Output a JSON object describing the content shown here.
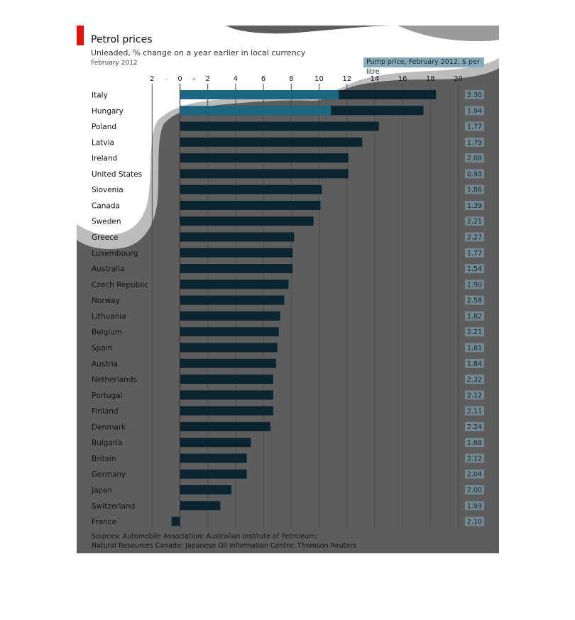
{
  "header": {
    "title": "Petrol prices",
    "subtitle": "Unleaded, % change on a year earlier in local currency",
    "date": "February 2012",
    "pump_label": "Pump price, February 2012, $ per litre"
  },
  "footer": {
    "source_line1": "Sources: Automobile Association; Australian Institute of Petroleum;",
    "source_line2": "Natural Resources Canada; Japanese Oil Information Centre; Thomson Reuters"
  },
  "colors": {
    "card": "#5d5d5d",
    "bar": "#0b2530",
    "bar_highlight": "#1f6e8c",
    "accent": "#e3120b",
    "pump_box": "#86aab8",
    "splash_white": "#ffffff",
    "splash_grey": "#bcbcbc"
  },
  "chart_data": {
    "type": "bar",
    "orientation": "horizontal",
    "title": "Petrol prices",
    "xlabel": "Unleaded, % change on a year earlier in local currency",
    "xlim": [
      -4,
      20
    ],
    "xticks": [
      "2",
      "–",
      "0",
      "+",
      "2",
      "4",
      "6",
      "8",
      "10",
      "12",
      "14",
      "16",
      "18",
      "20"
    ],
    "categories": [
      "Italy",
      "Hungary",
      "Poland",
      "Latvia",
      "Ireland",
      "United States",
      "Slovenia",
      "Canada",
      "Sweden",
      "Greece",
      "Luxembourg",
      "Australia",
      "Czech Republic",
      "Norway",
      "Lithuania",
      "Belgium",
      "Spain",
      "Austria",
      "Netherlands",
      "Portugal",
      "Finland",
      "Denmark",
      "Bulgaria",
      "Britain",
      "Germany",
      "Japan",
      "Switzerland",
      "France"
    ],
    "series": [
      {
        "name": "% change",
        "values": [
          18.4,
          17.5,
          14.3,
          13.1,
          12.1,
          12.1,
          10.2,
          10.1,
          9.6,
          8.2,
          8.1,
          8.1,
          7.8,
          7.5,
          7.2,
          7.1,
          7.0,
          6.9,
          6.7,
          6.7,
          6.7,
          6.5,
          5.1,
          4.8,
          4.8,
          3.7,
          2.9,
          -0.6
        ]
      },
      {
        "name": "Pump price, February 2012, $ per litre",
        "values": [
          "2.30",
          "1.94",
          "1.77",
          "1.79",
          "2.08",
          "0.93",
          "1.86",
          "1.39",
          "2.21",
          "2.27",
          "1.77",
          "1.54",
          "1.90",
          "2.58",
          "1.82",
          "2.21",
          "1.81",
          "1.84",
          "2.32",
          "2.12",
          "2.11",
          "2.24",
          "1.68",
          "2.12",
          "2.04",
          "2.00",
          "1.93",
          "2.10"
        ]
      }
    ],
    "grid": true
  }
}
